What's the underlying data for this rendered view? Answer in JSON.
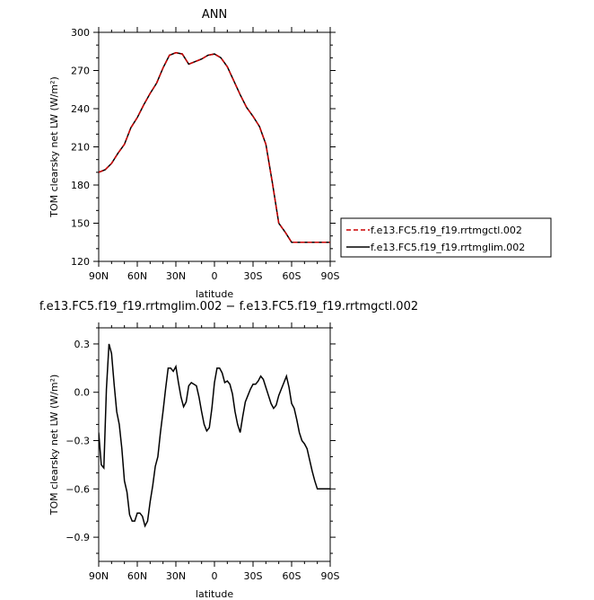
{
  "chart_data": [
    {
      "type": "line",
      "title": "ANN",
      "xlabel": "latitude",
      "ylabel": "TOM clearsky net LW (W/m²)",
      "xlim": [
        90,
        -90
      ],
      "ylim": [
        120,
        300
      ],
      "x_ticks": [
        {
          "value": 90,
          "label": "90N"
        },
        {
          "value": 60,
          "label": "60N"
        },
        {
          "value": 30,
          "label": "30N"
        },
        {
          "value": 0,
          "label": "0"
        },
        {
          "value": -30,
          "label": "30S"
        },
        {
          "value": -60,
          "label": "60S"
        },
        {
          "value": -90,
          "label": "90S"
        }
      ],
      "y_ticks": [
        120,
        150,
        180,
        210,
        240,
        270,
        300
      ],
      "y_tick_labels": [
        "120",
        "150",
        "180",
        "210",
        "240",
        "270",
        "300"
      ],
      "grid": false,
      "legend_position": "right",
      "x": [
        90,
        85,
        80,
        75,
        70,
        65,
        60,
        55,
        50,
        45,
        40,
        35,
        30,
        25,
        20,
        15,
        10,
        5,
        0,
        -5,
        -10,
        -15,
        -20,
        -25,
        -30,
        -35,
        -40,
        -45,
        -50,
        -55,
        -60,
        -65,
        -70,
        -75,
        -80,
        -85,
        -90
      ],
      "series": [
        {
          "name": "f.e13.FC5.f19_f19.rrtmgctl.002",
          "color": "#cc0000",
          "dash": "dashed",
          "values": [
            190,
            192,
            197,
            205,
            212,
            225,
            233,
            243,
            252,
            260,
            272,
            282,
            284,
            283,
            275,
            277,
            279,
            282,
            283,
            280,
            273,
            262,
            251,
            241,
            234,
            226,
            212,
            182,
            150,
            143,
            135,
            135,
            135,
            135,
            135,
            135,
            135
          ]
        },
        {
          "name": "f.e13.FC5.f19_f19.rrtmglim.002",
          "color": "#000000",
          "dash": "solid",
          "values": [
            190,
            192,
            197,
            205,
            212,
            225,
            233,
            243,
            252,
            260,
            272,
            282,
            284,
            283,
            275,
            277,
            279,
            282,
            283,
            280,
            273,
            262,
            251,
            241,
            234,
            226,
            212,
            182,
            150,
            143,
            135,
            135,
            135,
            135,
            135,
            135,
            135
          ]
        }
      ]
    },
    {
      "type": "line",
      "title": "f.e13.FC5.f19_f19.rrtmglim.002 − f.e13.FC5.f19_f19.rrtmgctl.002",
      "xlabel": "latitude",
      "ylabel": "TOM clearsky net LW (W/m²)",
      "xlim": [
        90,
        -90
      ],
      "ylim": [
        -1.05,
        0.4
      ],
      "x_ticks": [
        {
          "value": 90,
          "label": "90N"
        },
        {
          "value": 60,
          "label": "60N"
        },
        {
          "value": 30,
          "label": "30N"
        },
        {
          "value": 0,
          "label": "0"
        },
        {
          "value": -30,
          "label": "30S"
        },
        {
          "value": -60,
          "label": "60S"
        },
        {
          "value": -90,
          "label": "90S"
        }
      ],
      "y_ticks": [
        -0.9,
        -0.6,
        -0.3,
        0.0,
        0.3
      ],
      "y_tick_labels": [
        "−0.9",
        "−0.6",
        "−0.3",
        "0.0",
        "0.3"
      ],
      "grid": false,
      "x": [
        90,
        88,
        86,
        84,
        82,
        80,
        78,
        76,
        74,
        72,
        70,
        68,
        66,
        64,
        62,
        60,
        58,
        56,
        54,
        52,
        50,
        48,
        46,
        44,
        42,
        40,
        38,
        36,
        34,
        32,
        30,
        28,
        26,
        24,
        22,
        20,
        18,
        16,
        14,
        12,
        10,
        8,
        6,
        4,
        2,
        0,
        -2,
        -4,
        -6,
        -8,
        -10,
        -12,
        -14,
        -16,
        -18,
        -20,
        -22,
        -24,
        -26,
        -28,
        -30,
        -32,
        -34,
        -36,
        -38,
        -40,
        -42,
        -44,
        -46,
        -48,
        -50,
        -52,
        -54,
        -56,
        -58,
        -60,
        -62,
        -64,
        -66,
        -68,
        -70,
        -72,
        -74,
        -76,
        -78,
        -80,
        -82,
        -84,
        -86,
        -88,
        -90
      ],
      "series": [
        {
          "name": "",
          "color": "#000000",
          "dash": "solid",
          "values": [
            -0.25,
            -0.45,
            -0.47,
            0.02,
            0.3,
            0.24,
            0.05,
            -0.12,
            -0.2,
            -0.35,
            -0.55,
            -0.62,
            -0.76,
            -0.8,
            -0.8,
            -0.75,
            -0.75,
            -0.77,
            -0.83,
            -0.8,
            -0.68,
            -0.58,
            -0.46,
            -0.4,
            -0.25,
            -0.12,
            0.02,
            0.15,
            0.15,
            0.13,
            0.16,
            0.06,
            -0.03,
            -0.09,
            -0.06,
            0.04,
            0.06,
            0.05,
            0.04,
            -0.03,
            -0.12,
            -0.2,
            -0.24,
            -0.22,
            -0.1,
            0.06,
            0.15,
            0.15,
            0.12,
            0.06,
            0.07,
            0.05,
            -0.01,
            -0.12,
            -0.2,
            -0.25,
            -0.15,
            -0.06,
            -0.02,
            0.02,
            0.05,
            0.05,
            0.07,
            0.1,
            0.08,
            0.03,
            -0.02,
            -0.07,
            -0.1,
            -0.08,
            -0.02,
            0.02,
            0.06,
            0.1,
            0.03,
            -0.07,
            -0.1,
            -0.17,
            -0.25,
            -0.3,
            -0.32,
            -0.35,
            -0.42,
            -0.49,
            -0.55,
            -0.6,
            -0.6,
            -0.6,
            -0.6,
            -0.6,
            -0.6
          ]
        }
      ]
    }
  ]
}
